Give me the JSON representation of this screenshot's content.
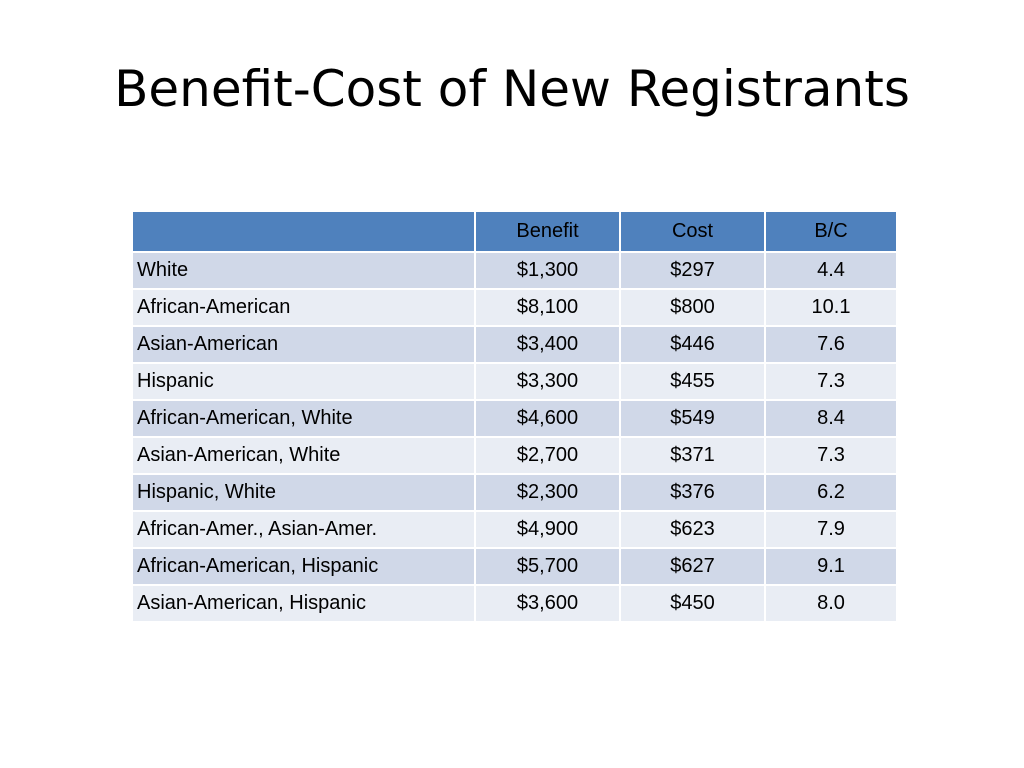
{
  "slide": {
    "title": "Benefit-Cost of New Registrants"
  },
  "table": {
    "headers": [
      "",
      "Benefit",
      "Cost",
      "B/C"
    ],
    "rows": [
      {
        "group": "White",
        "benefit": "$1,300",
        "cost": "$297",
        "bc": "4.4"
      },
      {
        "group": "African-American",
        "benefit": "$8,100",
        "cost": "$800",
        "bc": "10.1"
      },
      {
        "group": "Asian-American",
        "benefit": "$3,400",
        "cost": "$446",
        "bc": "7.6"
      },
      {
        "group": "Hispanic",
        "benefit": "$3,300",
        "cost": "$455",
        "bc": "7.3"
      },
      {
        "group": "African-American, White",
        "benefit": "$4,600",
        "cost": "$549",
        "bc": "8.4"
      },
      {
        "group": "Asian-American, White",
        "benefit": "$2,700",
        "cost": "$371",
        "bc": "7.3"
      },
      {
        "group": "Hispanic, White",
        "benefit": "$2,300",
        "cost": "$376",
        "bc": "6.2"
      },
      {
        "group": "African-Amer., Asian-Amer.",
        "benefit": "$4,900",
        "cost": "$623",
        "bc": "7.9"
      },
      {
        "group": "African-American, Hispanic",
        "benefit": "$5,700",
        "cost": "$627",
        "bc": "9.1"
      },
      {
        "group": "Asian-American, Hispanic",
        "benefit": "$3,600",
        "cost": "$450",
        "bc": "8.0"
      }
    ]
  },
  "colors": {
    "header_fill": "#4f81bd",
    "row_fill_dark": "#d0d8e8",
    "row_fill_light": "#e9edf4"
  }
}
